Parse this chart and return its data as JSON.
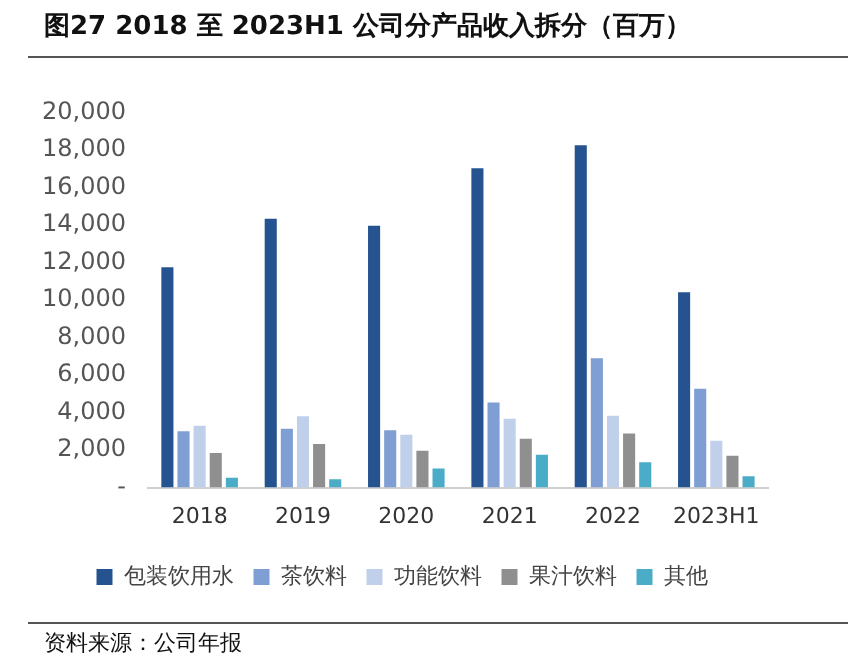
{
  "chart_data": {
    "type": "bar",
    "title": "图27 2018 至 2023H1 公司分产品收入拆分（百万）",
    "categories": [
      "2018",
      "2019",
      "2020",
      "2021",
      "2022",
      "2023H1"
    ],
    "series": [
      {
        "name": "包装饮用水",
        "color": "#255390",
        "values": [
          11750,
          14330,
          13960,
          17020,
          18250,
          10410
        ]
      },
      {
        "name": "茶饮料",
        "color": "#7f9fd4",
        "values": [
          3010,
          3140,
          3060,
          4530,
          6900,
          5270
        ]
      },
      {
        "name": "功能饮料",
        "color": "#c0d0ea",
        "values": [
          3300,
          3800,
          2820,
          3670,
          3830,
          2500
        ]
      },
      {
        "name": "果汁饮料",
        "color": "#8f8f8f",
        "values": [
          1840,
          2330,
          1960,
          2610,
          2890,
          1700
        ]
      },
      {
        "name": "其他",
        "color": "#4aacc6",
        "values": [
          530,
          440,
          1020,
          1750,
          1350,
          600
        ]
      }
    ],
    "ylim": [
      0,
      20000
    ],
    "yticks": [
      {
        "value": 0,
        "label": "-"
      },
      {
        "value": 2000,
        "label": "2,000"
      },
      {
        "value": 4000,
        "label": "4,000"
      },
      {
        "value": 6000,
        "label": "6,000"
      },
      {
        "value": 8000,
        "label": "8,000"
      },
      {
        "value": 10000,
        "label": "10,000"
      },
      {
        "value": 12000,
        "label": "12,000"
      },
      {
        "value": 14000,
        "label": "14,000"
      },
      {
        "value": 16000,
        "label": "16,000"
      },
      {
        "value": 18000,
        "label": "18,000"
      },
      {
        "value": 20000,
        "label": "20,000"
      }
    ],
    "grid": false,
    "legend": "bottom",
    "annotations": [
      "资料来源：公司年报"
    ]
  }
}
